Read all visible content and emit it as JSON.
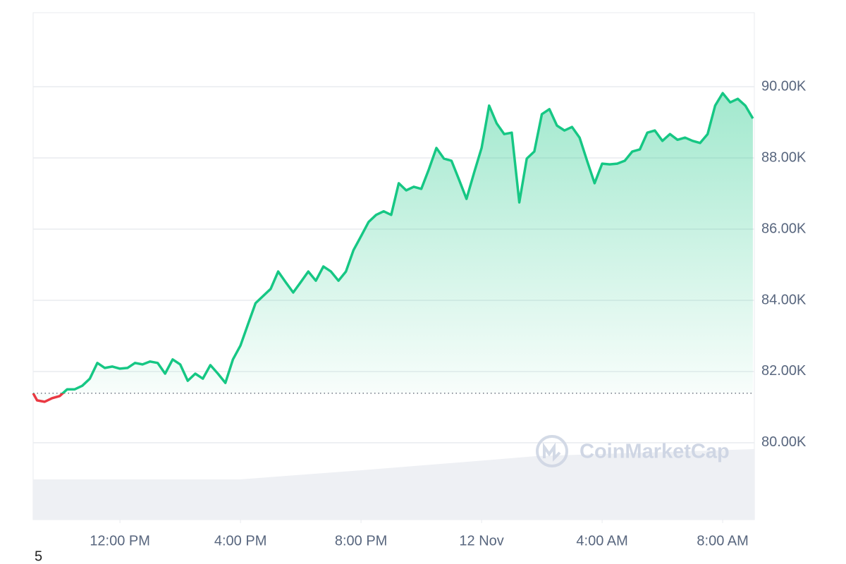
{
  "chart_data": {
    "type": "line",
    "x": [
      9.12,
      9.25,
      9.5,
      9.75,
      10,
      10.25,
      10.5,
      10.75,
      11,
      11.25,
      11.5,
      11.75,
      12,
      12.25,
      12.5,
      12.75,
      13,
      13.25,
      13.5,
      13.75,
      14,
      14.25,
      14.5,
      14.75,
      15,
      15.25,
      15.5,
      15.75,
      16,
      16.25,
      16.5,
      16.75,
      17,
      17.25,
      17.5,
      17.75,
      18,
      18.25,
      18.5,
      18.75,
      19,
      19.25,
      19.5,
      19.75,
      20,
      20.25,
      20.5,
      20.75,
      21,
      21.25,
      21.5,
      21.75,
      22,
      22.25,
      22.5,
      22.75,
      23,
      23.25,
      23.5,
      23.75,
      24,
      24.25,
      24.5,
      24.75,
      25,
      25.25,
      25.5,
      25.75,
      26,
      26.25,
      26.5,
      26.75,
      27,
      27.25,
      27.5,
      27.75,
      28,
      28.25,
      28.5,
      28.75,
      29,
      29.25,
      29.5,
      29.75,
      30,
      30.25,
      30.5,
      30.75,
      31,
      31.25,
      31.5,
      31.75,
      32,
      32.25,
      32.5,
      32.75,
      33
    ],
    "values": [
      81390,
      81190,
      81150,
      81250,
      81310,
      81500,
      81500,
      81600,
      81800,
      82240,
      82100,
      82140,
      82080,
      82100,
      82240,
      82200,
      82280,
      82240,
      81940,
      82340,
      82200,
      81740,
      81940,
      81800,
      82180,
      81940,
      81680,
      82340,
      82730,
      83330,
      83920,
      84120,
      84320,
      84810,
      84510,
      84220,
      84510,
      84810,
      84550,
      84950,
      84810,
      84550,
      84810,
      85410,
      85800,
      86200,
      86400,
      86500,
      86400,
      87290,
      87090,
      87190,
      87130,
      87680,
      88280,
      87980,
      87920,
      87390,
      86850,
      87580,
      88280,
      89470,
      88970,
      88670,
      88710,
      86750,
      87980,
      88180,
      89230,
      89370,
      88910,
      88770,
      88870,
      88570,
      87920,
      87290,
      87840,
      87820,
      87840,
      87920,
      88180,
      88240,
      88710,
      88770,
      88480,
      88670,
      88510,
      88570,
      88480,
      88420,
      88670,
      89470,
      89820,
      89560,
      89660,
      89470,
      89110
    ],
    "baseline": 81390,
    "up_color": "#16c784",
    "down_color": "#ea3943",
    "xlim": [
      9.12,
      33.05
    ],
    "xticks": [
      {
        "value": 12,
        "label": "12:00 PM"
      },
      {
        "value": 16,
        "label": "4:00 PM"
      },
      {
        "value": 20,
        "label": "8:00 PM"
      },
      {
        "value": 24,
        "label": "12 Nov"
      },
      {
        "value": 28,
        "label": "4:00 AM"
      },
      {
        "value": 32,
        "label": "8:00 AM"
      }
    ],
    "ylim": [
      77840,
      92080
    ],
    "yticks": [
      {
        "value": 80000,
        "label": "80.00K"
      },
      {
        "value": 82000,
        "label": "82.00K"
      },
      {
        "value": 84000,
        "label": "84.00K"
      },
      {
        "value": 86000,
        "label": "86.00K"
      },
      {
        "value": 88000,
        "label": "88.00K"
      },
      {
        "value": 90000,
        "label": "90.00K"
      }
    ],
    "grid": true,
    "watermark": "CoinMarketCap"
  },
  "footnote": "5"
}
